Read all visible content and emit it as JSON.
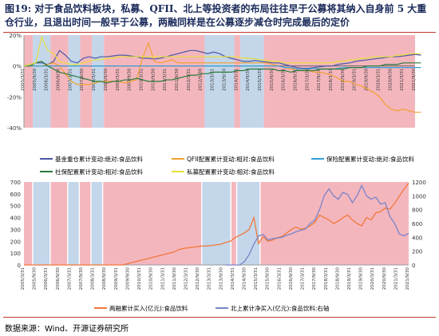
{
  "header": {
    "figure_no": "图19:",
    "title": "对于食品饮料板块，私募、QFII、北上等投资者的布局往往早于公募将其纳入自身前 5 大重仓行业，且退出时间一般早于公募，两融同样是在公募逐步减仓时完成最后的定价"
  },
  "footer": {
    "source": "数据来源：Wind、开源证券研究所"
  },
  "colors": {
    "pink_band": "#f4b6bd",
    "blue_band": "#c3d6ea",
    "axis": "#999999"
  },
  "chart_data": [
    {
      "type": "line",
      "title": "",
      "yaxis": {
        "ticks": [
          "20%",
          "0%",
          "-20%",
          "-40%"
        ],
        "ylim": [
          -0.4,
          0.2
        ]
      },
      "x_labels": [
        "2005/3/31",
        "2005/9/30",
        "2006/3/31",
        "2006/9/30",
        "2007/3/31",
        "2007/9/30",
        "2008/3/31",
        "2008/9/30",
        "2009/3/31",
        "2009/9/30",
        "2010/3/31",
        "2010/9/30",
        "2011/3/31",
        "2011/9/30",
        "2012/3/31",
        "2012/9/30",
        "2013/3/31",
        "2013/9/30",
        "2014/3/31",
        "2014/9/30",
        "2015/3/31",
        "2015/9/30",
        "2016/3/31",
        "2016/9/30",
        "2017/3/31",
        "2017/9/30",
        "2018/3/31",
        "2018/9/30",
        "2019/3/31",
        "2019/9/30",
        "2020/3/31",
        "2020/9/30",
        "2021/3/31",
        "2021/9/30"
      ],
      "bands": [
        {
          "from": 0,
          "to": 1,
          "kind": "pink"
        },
        {
          "from": 2,
          "to": 4,
          "kind": "blue"
        },
        {
          "from": 5,
          "to": 7,
          "kind": "pink"
        },
        {
          "from": 8,
          "to": 9,
          "kind": "blue"
        },
        {
          "from": 10,
          "to": 11,
          "kind": "pink"
        },
        {
          "from": 12,
          "to": 13,
          "kind": "blue"
        },
        {
          "from": 14,
          "to": 30,
          "kind": "pink"
        },
        {
          "from": 31,
          "to": 35,
          "kind": "blue"
        },
        {
          "from": 36,
          "to": 36,
          "kind": "pink"
        },
        {
          "from": 37,
          "to": 40,
          "kind": "blue"
        },
        {
          "from": 41,
          "to": 66,
          "kind": "pink"
        }
      ],
      "series": [
        {
          "name": "基金重仓累计变动:绝对:食品饮料",
          "color": "#4a5aa8",
          "axis": "left",
          "values": [
            0,
            0.01,
            0.02,
            0.02,
            0.01,
            0.03,
            0.1,
            0.07,
            0.03,
            0.02,
            0.05,
            0.06,
            0.05,
            0.06,
            0.06,
            0.065,
            0.07,
            0.07,
            0.065,
            0.06,
            0.05,
            0.05,
            0.045,
            0.05,
            0.06,
            0.07,
            0.08,
            0.09,
            0.1,
            0.1,
            0.09,
            0.08,
            0.09,
            0.08,
            0.06,
            0.05,
            0.04,
            0.03,
            0.03,
            0.035,
            0.03,
            0.025,
            0.02,
            0.02,
            0.01,
            0.0,
            -0.01,
            -0.015,
            -0.015,
            -0.01,
            -0.005,
            0.0,
            0.0,
            0.01,
            0.015,
            0.02,
            0.03,
            0.035,
            0.04,
            0.045,
            0.05,
            0.055,
            0.06,
            0.06,
            0.065,
            0.07,
            0.075,
            0.07
          ]
        },
        {
          "name": "QFII配置累计变动:相对:食品饮料",
          "color": "#f0a030",
          "axis": "left",
          "values": [
            0,
            0.0,
            0.0,
            0.0,
            0.01,
            0.02,
            0.0,
            -0.05,
            -0.1,
            -0.12,
            -0.12,
            -0.12,
            -0.11,
            -0.1,
            -0.1,
            -0.1,
            -0.1,
            -0.11,
            -0.1,
            -0.09,
            0.05,
            0.15,
            0.03,
            0.02,
            0.03,
            0.04,
            0.02,
            0.02,
            0.02,
            0.02,
            0.02,
            0.02,
            0.02,
            0.02,
            0.02,
            0.02,
            0.02,
            0.02,
            0.02,
            0.02,
            0.02,
            0.02,
            0.01,
            0.0,
            -0.01,
            -0.02,
            -0.02,
            -0.02,
            -0.03,
            -0.04,
            -0.04,
            -0.05,
            -0.06,
            -0.08,
            -0.1,
            -0.1,
            -0.12,
            -0.13,
            -0.15,
            -0.17,
            -0.2,
            -0.25,
            -0.28,
            -0.29,
            -0.28,
            -0.29,
            -0.3,
            -0.3
          ]
        },
        {
          "name": "保险配置累计变动:绝对:食品饮料",
          "color": "#33a0d8",
          "axis": "left",
          "values": [
            0,
            0.0,
            0.0,
            0.0,
            0.0,
            0.0,
            0.0,
            0.0,
            0.0,
            0.0,
            0.0,
            0.0,
            0.0,
            0.0,
            0.0,
            0.0,
            0.0,
            0.0,
            0.0,
            0.0,
            0.0,
            0.0,
            0.0,
            0.0,
            0.0,
            0.0,
            0.0,
            0.0,
            0.0,
            0.0,
            0.0,
            0.0,
            0.0,
            0.0,
            0.0,
            0.0,
            0.0,
            0.0,
            0.0,
            0.0,
            0.0,
            0.0,
            0.0,
            0.0,
            -0.01,
            -0.01,
            -0.02,
            -0.02,
            -0.02,
            -0.015,
            -0.02,
            -0.02,
            -0.02,
            -0.015,
            -0.01,
            -0.01,
            -0.01,
            -0.01,
            -0.01,
            -0.01,
            -0.01,
            -0.01,
            -0.01,
            -0.01,
            -0.01,
            -0.01,
            -0.01,
            -0.01
          ]
        },
        {
          "name": "社保配置累计变动:相对:食品饮料",
          "color": "#2a7a3a",
          "axis": "left",
          "values": [
            0,
            0.0,
            0.02,
            0.03,
            0.0,
            -0.02,
            -0.04,
            -0.05,
            -0.06,
            -0.07,
            -0.08,
            -0.09,
            -0.1,
            -0.1,
            -0.11,
            -0.1,
            -0.1,
            -0.09,
            -0.09,
            -0.08,
            -0.09,
            -0.1,
            -0.1,
            -0.1,
            -0.09,
            -0.09,
            -0.08,
            -0.07,
            -0.06,
            -0.06,
            -0.05,
            -0.05,
            -0.04,
            -0.04,
            -0.04,
            -0.04,
            -0.03,
            -0.03,
            -0.02,
            -0.02,
            -0.02,
            -0.02,
            -0.02,
            -0.03,
            -0.03,
            -0.04,
            -0.03,
            -0.03,
            -0.03,
            -0.03,
            -0.02,
            -0.02,
            -0.02,
            -0.02,
            -0.02,
            -0.01,
            -0.01,
            -0.01,
            0.0,
            0.0,
            0.0,
            0.01,
            0.01,
            0.01,
            0.02,
            0.02,
            0.02,
            0.02
          ]
        },
        {
          "name": "私募配置累计变动:相对:食品饮料",
          "color": "#e8e03a",
          "axis": "left",
          "values": [
            0,
            0.01,
            0.02,
            0.19,
            0.1,
            0.08,
            0.03,
            0.02,
            0.01,
            0.01,
            0.02,
            0.03,
            0.04,
            0.04,
            0.05,
            0.05,
            0.06,
            0.06,
            0.06,
            0.06,
            0.06,
            0.06,
            0.06,
            0.06,
            0.06,
            0.06,
            0.06,
            0.06,
            0.06,
            0.06,
            0.06,
            0.06,
            0.06,
            0.06,
            0.06,
            0.06,
            0.06,
            0.05,
            0.05,
            0.045,
            0.04,
            0.035,
            0.03,
            0.03,
            0.02,
            0.02,
            0.02,
            0.02,
            0.02,
            0.02,
            0.02,
            0.02,
            0.02,
            0.03,
            0.03,
            0.04,
            0.04,
            0.05,
            0.05,
            0.06,
            0.06,
            0.06,
            0.06,
            0.07,
            0.07,
            0.08,
            0.08,
            0.08
          ]
        }
      ]
    },
    {
      "type": "line",
      "title": "",
      "yaxis_left": {
        "ticks": [
          0,
          100,
          200,
          300,
          400,
          500,
          600,
          700
        ],
        "ylim": [
          0,
          700
        ]
      },
      "yaxis_right": {
        "ticks": [
          0,
          200,
          400,
          600,
          800,
          1000,
          1200
        ],
        "ylim": [
          0,
          1200
        ]
      },
      "x_labels": [
        "2005/3/31",
        "2005/9/30",
        "2006/3/31",
        "2006/9/30",
        "2007/3/31",
        "2007/9/30",
        "2008/3/31",
        "2008/9/30",
        "2009/3/31",
        "2009/9/30",
        "2010/3/31",
        "2010/9/30",
        "2011/3/31",
        "2011/9/30",
        "2012/3/31",
        "2012/9/30",
        "2013/3/31",
        "2013/9/30",
        "2014/3/31",
        "2014/9/30",
        "2015/3/31",
        "2015/9/30",
        "2016/3/31",
        "2016/9/30",
        "2017/3/31",
        "2017/9/30",
        "2018/3/31",
        "2018/9/30",
        "2019/3/31",
        "2019/9/30",
        "2020/3/31",
        "2020/9/30",
        "2021/3/31",
        "2021/9/30"
      ],
      "bands": [
        {
          "from": 0,
          "to": 1,
          "kind": "pink"
        },
        {
          "from": 2,
          "to": 4,
          "kind": "blue"
        },
        {
          "from": 5,
          "to": 7,
          "kind": "pink"
        },
        {
          "from": 8,
          "to": 9,
          "kind": "blue"
        },
        {
          "from": 10,
          "to": 11,
          "kind": "pink"
        },
        {
          "from": 12,
          "to": 13,
          "kind": "blue"
        },
        {
          "from": 14,
          "to": 30,
          "kind": "pink"
        },
        {
          "from": 31,
          "to": 35,
          "kind": "blue"
        },
        {
          "from": 36,
          "to": 36,
          "kind": "pink"
        },
        {
          "from": 37,
          "to": 40,
          "kind": "blue"
        },
        {
          "from": 41,
          "to": 66,
          "kind": "pink"
        }
      ],
      "series": [
        {
          "name": "两融累计买入(亿元):食品饮料",
          "color": "#f0783a",
          "axis": "left",
          "start": 0,
          "values": [
            0,
            0,
            0,
            0,
            0,
            0,
            0,
            0,
            0,
            0,
            0,
            0,
            0,
            0,
            0,
            0,
            0,
            0,
            0,
            0,
            0,
            0,
            10,
            20,
            30,
            40,
            50,
            60,
            70,
            80,
            90,
            100,
            110,
            130,
            140,
            145,
            150,
            155,
            160,
            160,
            165,
            170,
            175,
            190,
            200,
            230,
            250,
            270,
            300,
            400,
            180,
            240,
            200,
            210,
            230,
            240,
            270,
            300,
            320,
            300,
            310,
            330,
            360,
            420,
            400,
            380,
            350,
            370,
            400,
            420,
            380,
            350,
            330,
            400,
            380,
            440,
            450,
            480,
            470,
            520,
            580,
            640,
            690
          ]
        },
        {
          "name": "北上累计净买入(亿元):食品饮料:右轴",
          "color": "#7a84c8",
          "axis": "right",
          "start": 45,
          "values": [
            0,
            0,
            0,
            0,
            50,
            150,
            300,
            420,
            440,
            360,
            380,
            390,
            400,
            430,
            450,
            480,
            500,
            520,
            600,
            650,
            800,
            1000,
            1100,
            1000,
            950,
            1050,
            1020,
            900,
            1000,
            1150,
            1000,
            950,
            980,
            880,
            900,
            700,
            600,
            450,
            420,
            460
          ]
        }
      ]
    }
  ]
}
